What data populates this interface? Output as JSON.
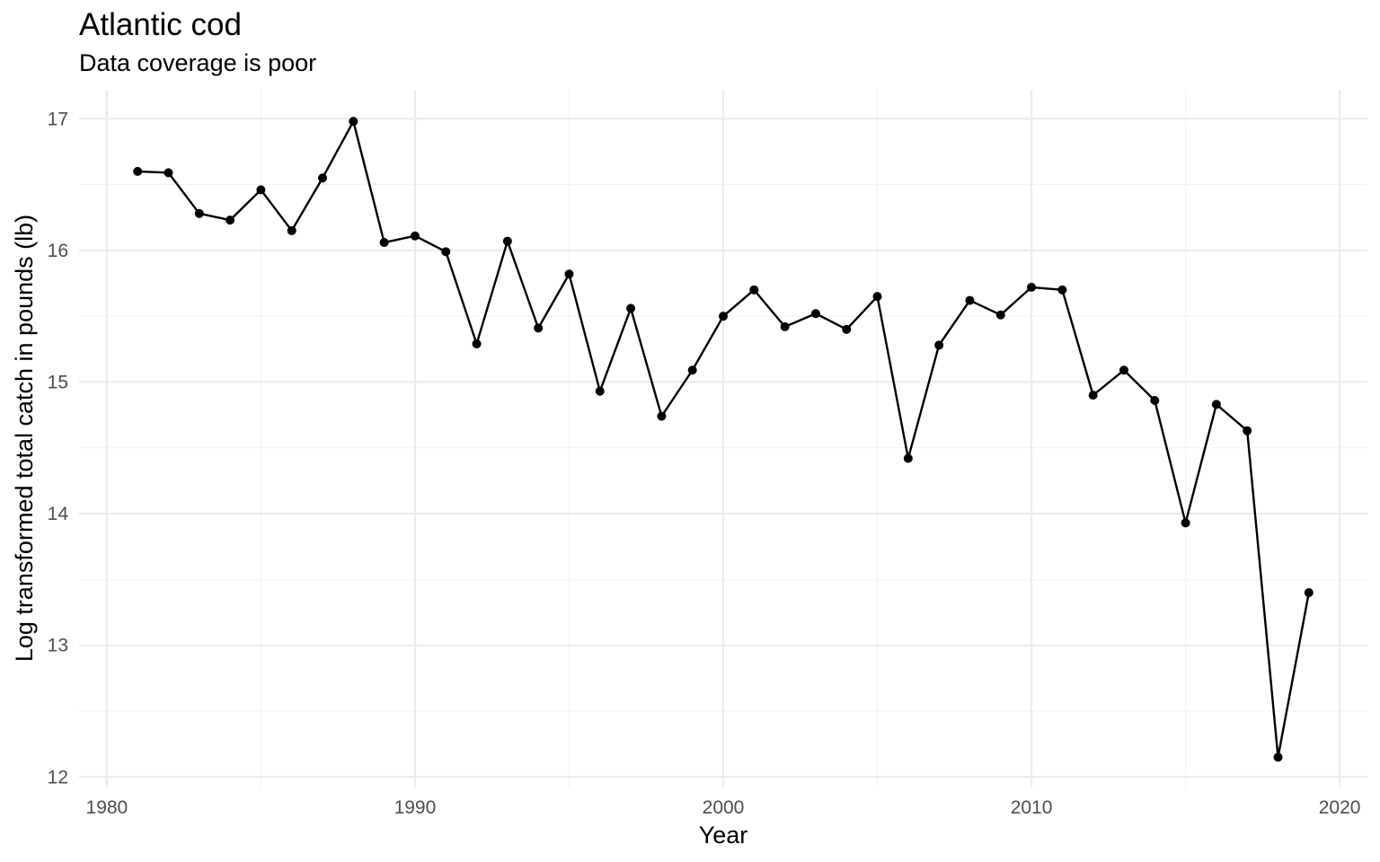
{
  "chart_data": {
    "type": "line",
    "title": "Atlantic cod",
    "subtitle": "Data coverage is poor",
    "xlabel": "Year",
    "ylabel": "Log transformed  total catch in pounds (lb)",
    "xlim": [
      1979.1,
      2020.9
    ],
    "ylim": [
      11.92,
      17.22
    ],
    "x_ticks": [
      1980,
      1990,
      2000,
      2010,
      2020
    ],
    "x_tick_labels": [
      "1980",
      "1990",
      "2000",
      "2010",
      "2020"
    ],
    "y_ticks": [
      12,
      13,
      14,
      15,
      16,
      17
    ],
    "y_tick_labels": [
      "12",
      "13",
      "14",
      "15",
      "16",
      "17"
    ],
    "grid": true,
    "x": [
      1981,
      1982,
      1983,
      1984,
      1985,
      1986,
      1987,
      1988,
      1989,
      1990,
      1991,
      1992,
      1993,
      1994,
      1995,
      1996,
      1997,
      1998,
      1999,
      2000,
      2001,
      2002,
      2003,
      2004,
      2005,
      2006,
      2007,
      2008,
      2009,
      2010,
      2011,
      2012,
      2013,
      2014,
      2015,
      2016,
      2017,
      2018,
      2019
    ],
    "y": [
      16.6,
      16.59,
      16.28,
      16.23,
      16.46,
      16.15,
      16.55,
      16.98,
      16.06,
      16.11,
      15.99,
      15.29,
      16.07,
      15.41,
      15.82,
      14.93,
      15.56,
      14.74,
      15.09,
      15.5,
      15.7,
      15.42,
      15.52,
      15.4,
      15.65,
      14.42,
      15.28,
      15.62,
      15.51,
      15.72,
      15.7,
      14.9,
      15.09,
      14.86,
      13.93,
      14.83,
      14.63,
      12.15,
      13.4
    ],
    "line_color": "#000000"
  }
}
